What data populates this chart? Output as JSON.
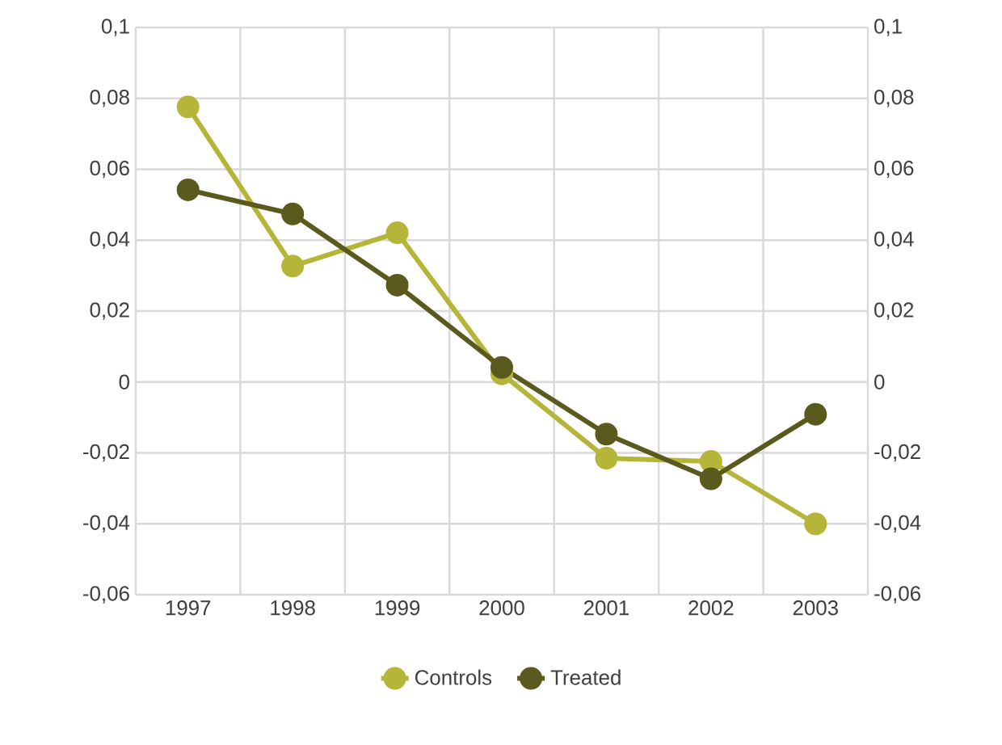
{
  "chart_data": {
    "type": "line",
    "categories": [
      "1997",
      "1998",
      "1999",
      "2000",
      "2001",
      "2002",
      "2003"
    ],
    "series": [
      {
        "name": "Controls",
        "color": "#b5b53a",
        "values": [
          0.0776,
          0.0327,
          0.0421,
          0.0023,
          -0.0215,
          -0.0224,
          -0.04
        ]
      },
      {
        "name": "Treated",
        "color": "#5a5a1e",
        "values": [
          0.0542,
          0.0474,
          0.0273,
          0.0041,
          -0.0147,
          -0.0273,
          -0.0091
        ]
      }
    ],
    "ylim": [
      -0.06,
      0.1
    ],
    "yticks": [
      {
        "value": -0.06,
        "label": "-0,06"
      },
      {
        "value": -0.04,
        "label": "-0,04"
      },
      {
        "value": -0.02,
        "label": "-0,02"
      },
      {
        "value": 0,
        "label": "0"
      },
      {
        "value": 0.02,
        "label": "0,02"
      },
      {
        "value": 0.04,
        "label": "0,04"
      },
      {
        "value": 0.06,
        "label": "0,06"
      },
      {
        "value": 0.08,
        "label": "0,08"
      },
      {
        "value": 0.1,
        "label": "0,1"
      }
    ],
    "y2lim": [
      -0.06,
      0.1
    ],
    "y2ticks": [
      {
        "value": -0.06,
        "label": "-0,06"
      },
      {
        "value": -0.04,
        "label": "-0,04"
      },
      {
        "value": -0.02,
        "label": "-0,02"
      },
      {
        "value": 0,
        "label": "0"
      },
      {
        "value": 0.02,
        "label": "0,02"
      },
      {
        "value": 0.04,
        "label": "0,04"
      },
      {
        "value": 0.06,
        "label": "0,06"
      },
      {
        "value": 0.08,
        "label": "0,08"
      },
      {
        "value": 0.1,
        "label": "0,1"
      }
    ],
    "grid": true,
    "legend": "bottom",
    "marker": "circle",
    "line_style": "solid"
  }
}
